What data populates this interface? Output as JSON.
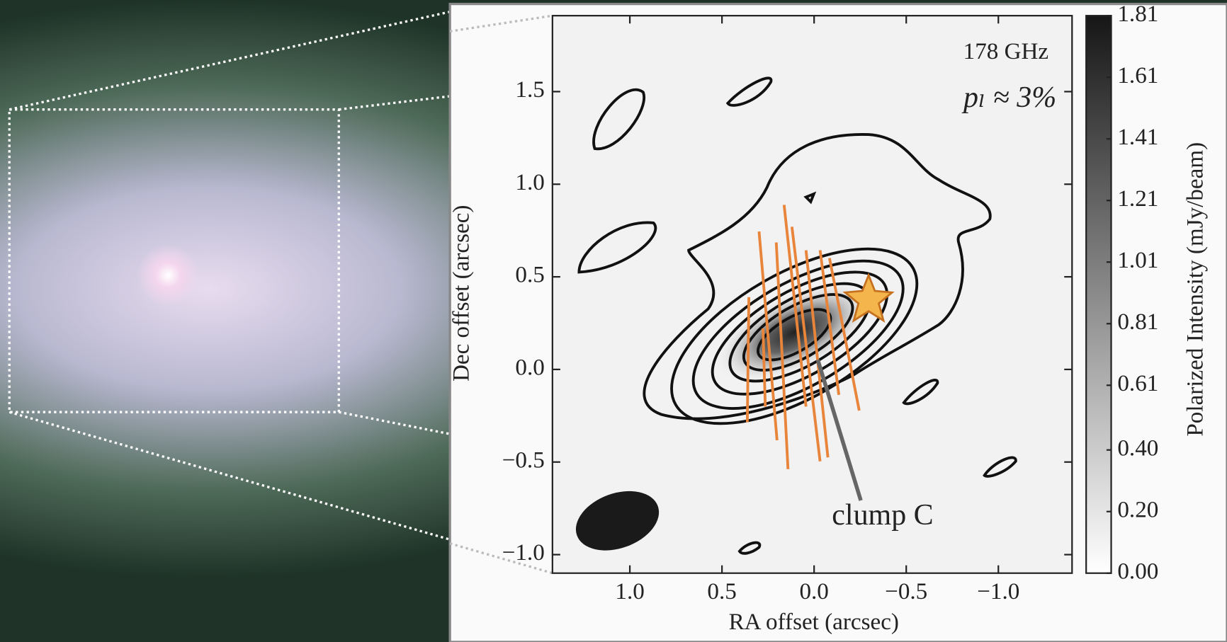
{
  "chart_data": {
    "type": "contour",
    "annotations": {
      "frequency": "178 GHz",
      "fraction": "pₗ ≈ 3%",
      "feature": "clump C"
    },
    "x_label": "RA offset (arcsec)",
    "y_label": "Dec offset (arcsec)",
    "xlim": [
      1.42,
      -1.4
    ],
    "ylim": [
      -1.1,
      1.91
    ],
    "xticks": [
      {
        "value": 1,
        "label": "1.0"
      },
      0.5,
      {
        "value": 0,
        "label": "0.0"
      },
      {
        "value": -0.5,
        "label": "−0.5"
      },
      {
        "value": -1,
        "label": "−1.0"
      }
    ],
    "yticks": [
      {
        "value": -1,
        "label": "−1.0"
      },
      {
        "value": -0.5,
        "label": "−0.5"
      },
      {
        "value": 0,
        "label": "0.0"
      },
      0.5,
      {
        "value": 1,
        "label": "1.0"
      },
      1.5
    ],
    "colorbar": {
      "label": "Polarized Intensity (mJy/beam)",
      "lim": [
        0,
        1.81
      ],
      "colors": [
        "#ffffff",
        "#161616"
      ],
      "ticks": [
        {
          "value": 0,
          "label": "0.00"
        },
        {
          "value": 0.2,
          "label": "0.20"
        },
        {
          "value": 0.4,
          "label": "0.40"
        },
        0.61,
        0.81,
        1.01,
        1.21,
        1.41,
        1.61,
        1.81
      ]
    },
    "vector_color": "#e8853a"
  }
}
